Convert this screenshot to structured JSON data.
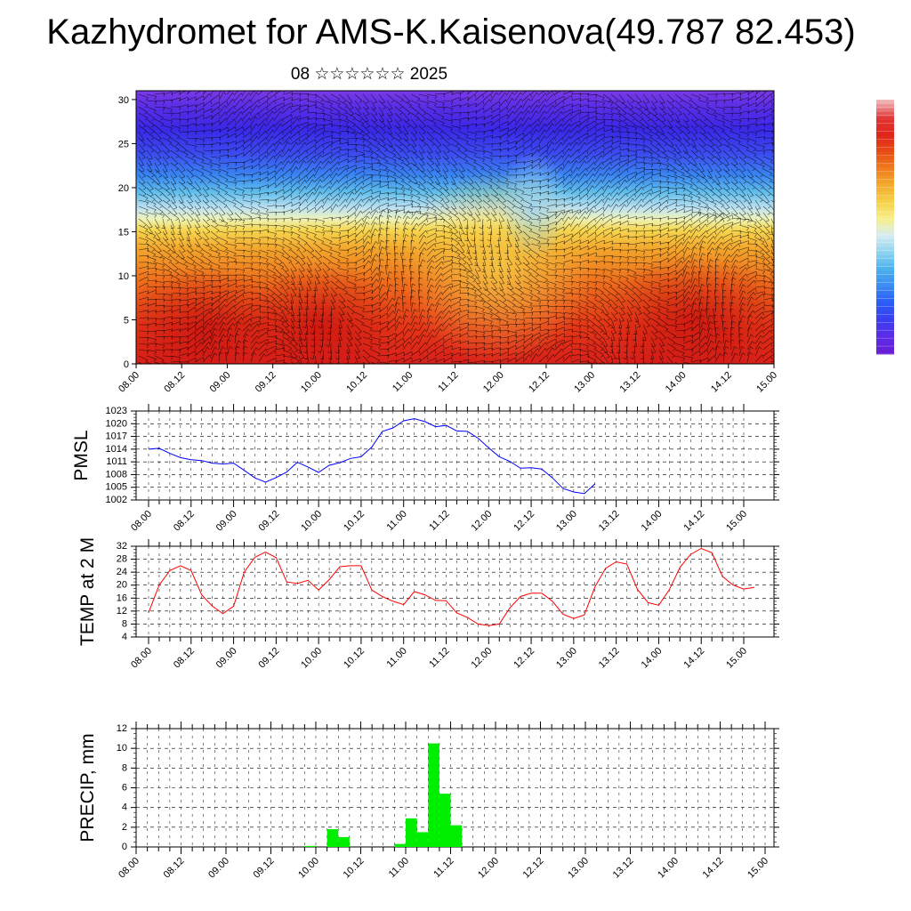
{
  "title": "Kazhydromet for AMS-K.Kaisenova(49.787 82.453)",
  "date_line": "08 ☆☆☆☆☆☆ 2025",
  "chart_data": [
    {
      "id": "section",
      "type": "heatmap",
      "title": "",
      "xlabel": "",
      "ylabel": "",
      "x_tick_labels": [
        "08.00",
        "08.12",
        "09.00",
        "09.12",
        "10.00",
        "10.12",
        "11.00",
        "11.12",
        "12.00",
        "12.12",
        "13.00",
        "13.12",
        "14.00",
        "14.12",
        "15.00"
      ],
      "y_ticks": [
        0,
        5,
        10,
        15,
        20,
        25,
        30
      ],
      "ylim": [
        0,
        31
      ],
      "colorbar": [
        "#6a1fd6",
        "#5a2ce8",
        "#3a3ff0",
        "#2a5cf5",
        "#3c8cf2",
        "#4cb2ec",
        "#8fd3f0",
        "#d6ecf2",
        "#f7f08a",
        "#f6d24a",
        "#f3ac2e",
        "#ef7d1e",
        "#e84e14",
        "#e0251a",
        "#e03434",
        "#f0b0b0"
      ]
    },
    {
      "id": "pmsl",
      "type": "line",
      "ylabel": "PMSL",
      "color": "#0000ff",
      "y_ticks": [
        1002,
        1005,
        1008,
        1011,
        1014,
        1017,
        1020,
        1023
      ],
      "ylim": [
        1002,
        1023
      ],
      "x_tick_labels": [
        "08.00",
        "08.12",
        "09.00",
        "09.12",
        "10.00",
        "10.12",
        "11.00",
        "11.12",
        "12.00",
        "12.12",
        "13.00",
        "13.12",
        "14.00",
        "14.12",
        "15.00"
      ],
      "x_step_hours": 3,
      "values": [
        1014,
        1014.2,
        1013,
        1012,
        1011.5,
        1011.3,
        1010.7,
        1010.5,
        1010.7,
        1009,
        1007.2,
        1006.2,
        1007.3,
        1008.6,
        1010.9,
        1009.8,
        1008.5,
        1010.2,
        1010.8,
        1011.8,
        1012.2,
        1014.5,
        1018.2,
        1019,
        1020.7,
        1021.2,
        1020.5,
        1019.3,
        1019.6,
        1018.3,
        1018.2,
        1016.6,
        1014.3,
        1012.2,
        1011.1,
        1009.5,
        1009.6,
        1009.3,
        1007.2,
        1004.7,
        1003.9,
        1003.5,
        1005.8
      ]
    },
    {
      "id": "temp",
      "type": "line",
      "ylabel": "TEMP at 2 M",
      "color": "#ff0000",
      "y_ticks": [
        4,
        8,
        12,
        16,
        20,
        24,
        28,
        32
      ],
      "ylim": [
        4,
        32
      ],
      "x_tick_labels": [
        "08.00",
        "08.12",
        "09.00",
        "09.12",
        "10.00",
        "10.12",
        "11.00",
        "11.12",
        "12.00",
        "12.12",
        "13.00",
        "13.12",
        "14.00",
        "14.12",
        "15.00"
      ],
      "x_step_hours": 3,
      "values": [
        11.5,
        20,
        24.5,
        26,
        24.5,
        17,
        13.5,
        11.2,
        13.5,
        24,
        28.6,
        30.2,
        28.5,
        21,
        20.5,
        21.5,
        18.5,
        21.7,
        25.7,
        26,
        26,
        18.5,
        16.5,
        15,
        14,
        18,
        17,
        15.3,
        15.2,
        11.4,
        10,
        8,
        7.5,
        8,
        13,
        16.5,
        17.5,
        17.5,
        15,
        11,
        9.7,
        10.8,
        19.5,
        25.2,
        27.2,
        26.5,
        18.7,
        14.6,
        13.8,
        18.6,
        25.5,
        29.5,
        31.3,
        30,
        22.7,
        20,
        18.8,
        19.3
      ]
    },
    {
      "id": "precip",
      "type": "bar",
      "ylabel": "PRECIP, mm",
      "color": "#00ee00",
      "y_ticks": [
        0,
        2,
        4,
        6,
        8,
        10,
        12
      ],
      "ylim": [
        0,
        12
      ],
      "x_tick_labels": [
        "08.00",
        "08.12",
        "09.00",
        "09.12",
        "10.00",
        "10.12",
        "11.00",
        "11.12",
        "12.00",
        "12.12",
        "13.00",
        "13.12",
        "14.00",
        "14.12",
        "15.00"
      ],
      "x_step_hours": 3,
      "values": [
        0,
        0,
        0,
        0,
        0,
        0,
        0,
        0,
        0,
        0,
        0,
        0,
        0,
        0,
        0,
        0.1,
        0,
        1.8,
        1,
        0,
        0,
        0,
        0,
        0.3,
        2.9,
        1.5,
        10.5,
        5.4,
        2.2,
        0,
        0,
        0,
        0,
        0,
        0,
        0,
        0,
        0,
        0,
        0,
        0,
        0,
        0,
        0,
        0,
        0,
        0,
        0,
        0,
        0,
        0,
        0,
        0,
        0,
        0,
        0
      ]
    }
  ]
}
